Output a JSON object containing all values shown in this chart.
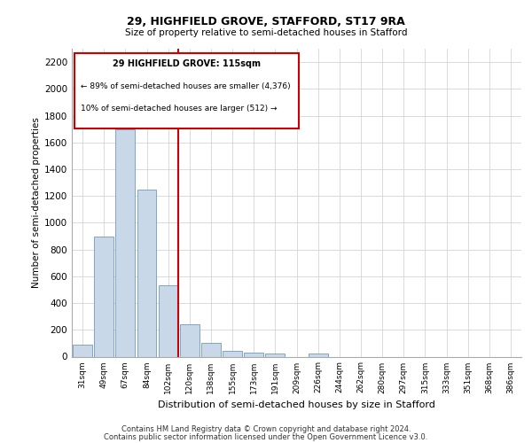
{
  "title1": "29, HIGHFIELD GROVE, STAFFORD, ST17 9RA",
  "title2": "Size of property relative to semi-detached houses in Stafford",
  "xlabel": "Distribution of semi-detached houses by size in Stafford",
  "ylabel": "Number of semi-detached properties",
  "footer1": "Contains HM Land Registry data © Crown copyright and database right 2024.",
  "footer2": "Contains public sector information licensed under the Open Government Licence v3.0.",
  "annotation_line1": "29 HIGHFIELD GROVE: 115sqm",
  "annotation_line2": "← 89% of semi-detached houses are smaller (4,376)",
  "annotation_line3": "10% of semi-detached houses are larger (512) →",
  "bar_color": "#c8d8e8",
  "bar_edge_color": "#5a8ab0",
  "highlight_line_color": "#cc0000",
  "categories": [
    "31sqm",
    "49sqm",
    "67sqm",
    "84sqm",
    "102sqm",
    "120sqm",
    "138sqm",
    "155sqm",
    "173sqm",
    "191sqm",
    "209sqm",
    "226sqm",
    "244sqm",
    "262sqm",
    "280sqm",
    "297sqm",
    "315sqm",
    "333sqm",
    "351sqm",
    "368sqm",
    "386sqm"
  ],
  "values": [
    90,
    900,
    1700,
    1250,
    530,
    240,
    100,
    40,
    30,
    25,
    0,
    25,
    0,
    0,
    0,
    0,
    0,
    0,
    0,
    0,
    0
  ],
  "ylim": [
    0,
    2300
  ],
  "yticks": [
    0,
    200,
    400,
    600,
    800,
    1000,
    1200,
    1400,
    1600,
    1800,
    2000,
    2200
  ],
  "annotation_box_color": "#ffffff",
  "annotation_box_edge": "#cc0000",
  "grid_color": "#cccccc"
}
